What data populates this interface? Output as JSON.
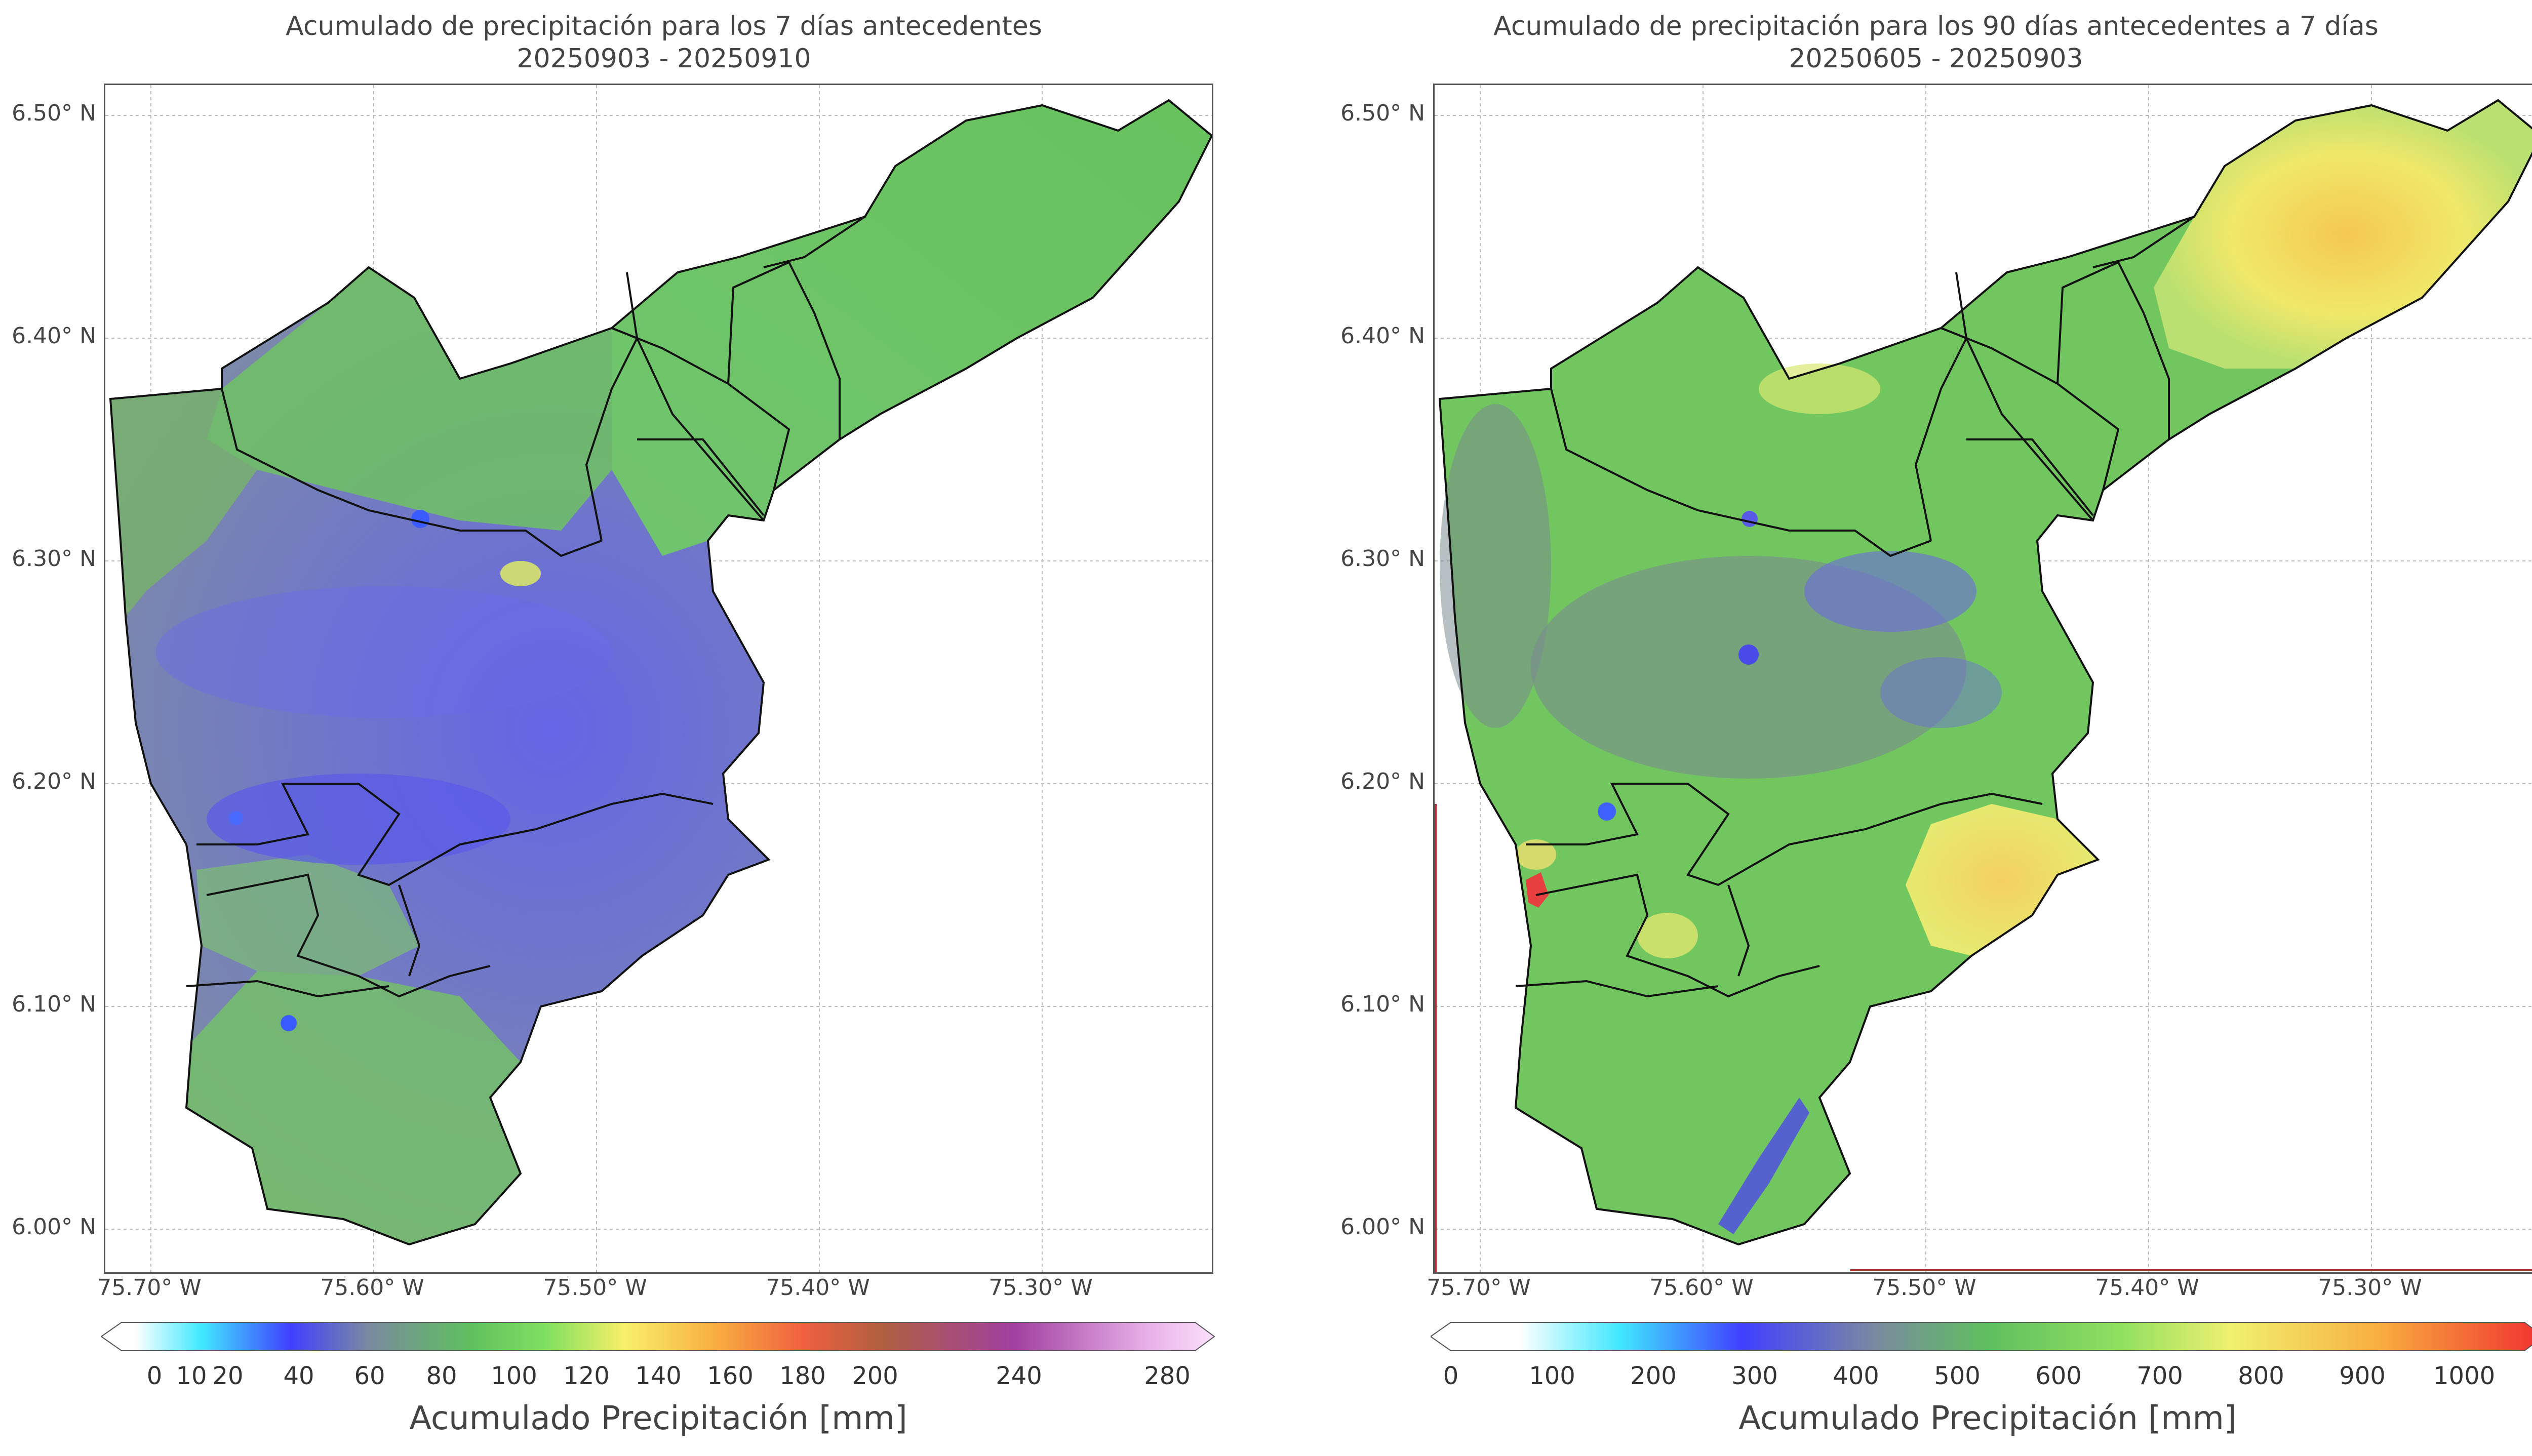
{
  "panels": [
    {
      "title_line1": "Acumulado de precipitación para los 7 días antecedentes",
      "title_line2": "20250903 - 20250910",
      "y_ticks": [
        "6.50° N",
        "6.40° N",
        "6.30° N",
        "6.20° N",
        "6.10° N",
        "6.00° N"
      ],
      "x_ticks": [
        "75.70° W",
        "75.60° W",
        "75.50° W",
        "75.40° W",
        "75.30° W"
      ],
      "colorbar_ticks": [
        "0",
        "10",
        "20",
        "40",
        "60",
        "80",
        "100",
        "120",
        "140",
        "160",
        "180",
        "200",
        "240",
        "280"
      ],
      "colorbar_title": "Acumulado Precipitación [mm]"
    },
    {
      "title_line1": "Acumulado de precipitación para los 90 días antecedentes a 7 días",
      "title_line2": "20250605 - 20250903",
      "y_ticks": [
        "6.50° N",
        "6.40° N",
        "6.30° N",
        "6.20° N",
        "6.10° N",
        "6.00° N"
      ],
      "x_ticks": [
        "75.70° W",
        "75.60° W",
        "75.50° W",
        "75.40° W",
        "75.30° W"
      ],
      "colorbar_ticks": [
        "0",
        "100",
        "200",
        "300",
        "400",
        "500",
        "600",
        "700",
        "800",
        "900",
        "1000"
      ],
      "colorbar_title": "Acumulado Precipitación [mm]"
    }
  ],
  "colors": {
    "green": "#6cc75a",
    "slate": "#7a8a8f",
    "blue_purple": "#6f6fe0",
    "yellow": "#f2e86a",
    "red": "#e84040",
    "outline": "#111111"
  }
}
